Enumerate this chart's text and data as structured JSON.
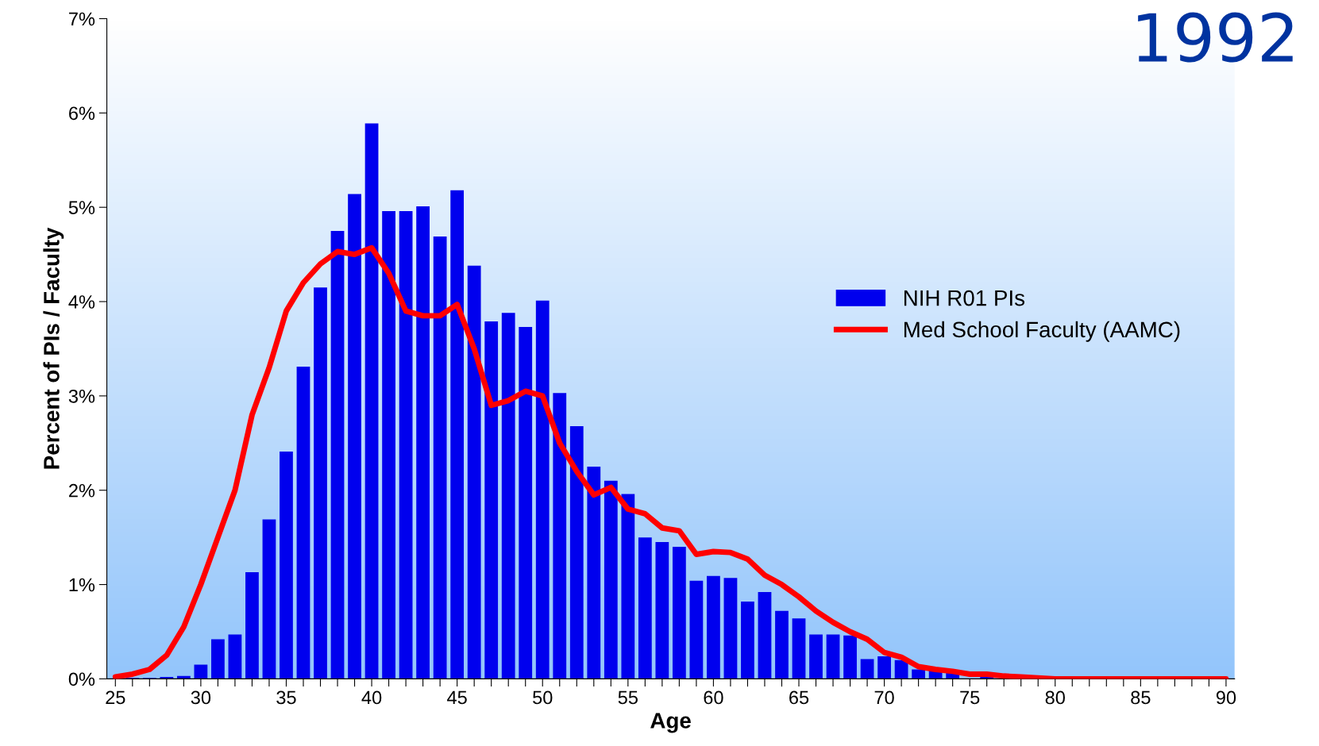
{
  "chart_data": {
    "type": "bar",
    "title": "1992",
    "xlabel": "Age",
    "ylabel": "Percent of PIs / Faculty",
    "x": [
      26,
      27,
      28,
      29,
      30,
      31,
      32,
      33,
      34,
      35,
      36,
      37,
      38,
      39,
      40,
      41,
      42,
      43,
      44,
      45,
      46,
      47,
      48,
      49,
      50,
      51,
      52,
      53,
      54,
      55,
      56,
      57,
      58,
      59,
      60,
      61,
      62,
      63,
      64,
      65,
      66,
      67,
      68,
      69,
      70,
      71,
      72,
      73,
      74,
      75,
      76
    ],
    "series": [
      {
        "name": "NIH R01 PIs",
        "color": "#0000ee",
        "values": [
          0.01,
          0.01,
          0.02,
          0.03,
          0.15,
          0.42,
          0.47,
          1.13,
          1.69,
          2.41,
          3.31,
          4.15,
          4.75,
          5.14,
          5.89,
          4.96,
          4.96,
          5.01,
          4.69,
          5.18,
          4.38,
          3.79,
          3.88,
          3.73,
          4.01,
          3.03,
          2.68,
          2.25,
          2.1,
          1.96,
          1.5,
          1.45,
          1.4,
          1.04,
          1.09,
          1.07,
          0.82,
          0.92,
          0.72,
          0.64,
          0.47,
          0.47,
          0.46,
          0.21,
          0.24,
          0.2,
          0.1,
          0.09,
          0.07,
          null,
          0.03
        ]
      },
      {
        "name": "Med School Faculty (AAMC)",
        "type": "line",
        "color": "#ff0000",
        "line_style": "solid",
        "marker": "none",
        "x": [
          25,
          26,
          27,
          28,
          29,
          30,
          31,
          32,
          33,
          34,
          35,
          36,
          37,
          38,
          39,
          40,
          41,
          42,
          43,
          44,
          45,
          46,
          47,
          48,
          49,
          50,
          51,
          52,
          53,
          54,
          55,
          56,
          57,
          58,
          59,
          60,
          61,
          62,
          63,
          64,
          65,
          66,
          67,
          68,
          69,
          70,
          71,
          72,
          73,
          74,
          75,
          76,
          77,
          78,
          80,
          85,
          90
        ],
        "values": [
          0.02,
          0.05,
          0.1,
          0.25,
          0.55,
          1.0,
          1.5,
          2.0,
          2.8,
          3.3,
          3.9,
          4.2,
          4.4,
          4.53,
          4.5,
          4.57,
          4.3,
          3.9,
          3.85,
          3.85,
          3.97,
          3.5,
          2.9,
          2.95,
          3.05,
          3.0,
          2.5,
          2.2,
          1.95,
          2.03,
          1.8,
          1.75,
          1.6,
          1.57,
          1.32,
          1.35,
          1.34,
          1.27,
          1.1,
          1.0,
          0.87,
          0.72,
          0.6,
          0.5,
          0.42,
          0.28,
          0.23,
          0.13,
          0.1,
          0.08,
          0.05,
          0.05,
          0.03,
          0.02,
          0.0,
          0.0,
          0.0
        ]
      }
    ],
    "xlim": [
      24.5,
      90.5
    ],
    "ylim": [
      0,
      7
    ],
    "xticks": [
      25,
      {
        "value": 26,
        "label": null
      },
      {
        "value": 27,
        "label": null
      },
      {
        "value": 28,
        "label": null
      },
      {
        "value": 29,
        "label": null
      },
      30,
      {
        "value": 31,
        "label": null
      },
      {
        "value": 32,
        "label": null
      },
      {
        "value": 33,
        "label": null
      },
      {
        "value": 34,
        "label": null
      },
      35,
      {
        "value": 36,
        "label": null
      },
      {
        "value": 37,
        "label": null
      },
      {
        "value": 38,
        "label": null
      },
      {
        "value": 39,
        "label": null
      },
      40,
      {
        "value": 41,
        "label": null
      },
      {
        "value": 42,
        "label": null
      },
      {
        "value": 43,
        "label": null
      },
      {
        "value": 44,
        "label": null
      },
      45,
      {
        "value": 46,
        "label": null
      },
      {
        "value": 47,
        "label": null
      },
      {
        "value": 48,
        "label": null
      },
      {
        "value": 49,
        "label": null
      },
      50,
      {
        "value": 51,
        "label": null
      },
      {
        "value": 52,
        "label": null
      },
      {
        "value": 53,
        "label": null
      },
      {
        "value": 54,
        "label": null
      },
      55,
      {
        "value": 56,
        "label": null
      },
      {
        "value": 57,
        "label": null
      },
      {
        "value": 58,
        "label": null
      },
      {
        "value": 59,
        "label": null
      },
      60,
      {
        "value": 61,
        "label": null
      },
      {
        "value": 62,
        "label": null
      },
      {
        "value": 63,
        "label": null
      },
      {
        "value": 64,
        "label": null
      },
      65,
      {
        "value": 66,
        "label": null
      },
      {
        "value": 67,
        "label": null
      },
      {
        "value": 68,
        "label": null
      },
      {
        "value": 69,
        "label": null
      },
      70,
      {
        "value": 71,
        "label": null
      },
      {
        "value": 72,
        "label": null
      },
      {
        "value": 73,
        "label": null
      },
      {
        "value": 74,
        "label": null
      },
      75,
      {
        "value": 76,
        "label": null
      },
      {
        "value": 77,
        "label": null
      },
      {
        "value": 78,
        "label": null
      },
      {
        "value": 79,
        "label": null
      },
      80,
      {
        "value": 81,
        "label": null
      },
      {
        "value": 82,
        "label": null
      },
      {
        "value": 83,
        "label": null
      },
      {
        "value": 84,
        "label": null
      },
      85,
      {
        "value": 86,
        "label": null
      },
      {
        "value": 87,
        "label": null
      },
      {
        "value": 88,
        "label": null
      },
      {
        "value": 89,
        "label": null
      },
      90
    ],
    "yticks": [
      {
        "value": 0,
        "label": "0%"
      },
      {
        "value": 1,
        "label": "1%"
      },
      {
        "value": 2,
        "label": "2%"
      },
      {
        "value": 3,
        "label": "3%"
      },
      {
        "value": 4,
        "label": "4%"
      },
      {
        "value": 5,
        "label": "5%"
      },
      {
        "value": 6,
        "label": "6%"
      },
      {
        "value": 7,
        "label": "7%"
      }
    ],
    "grid": false,
    "legend": "right"
  }
}
